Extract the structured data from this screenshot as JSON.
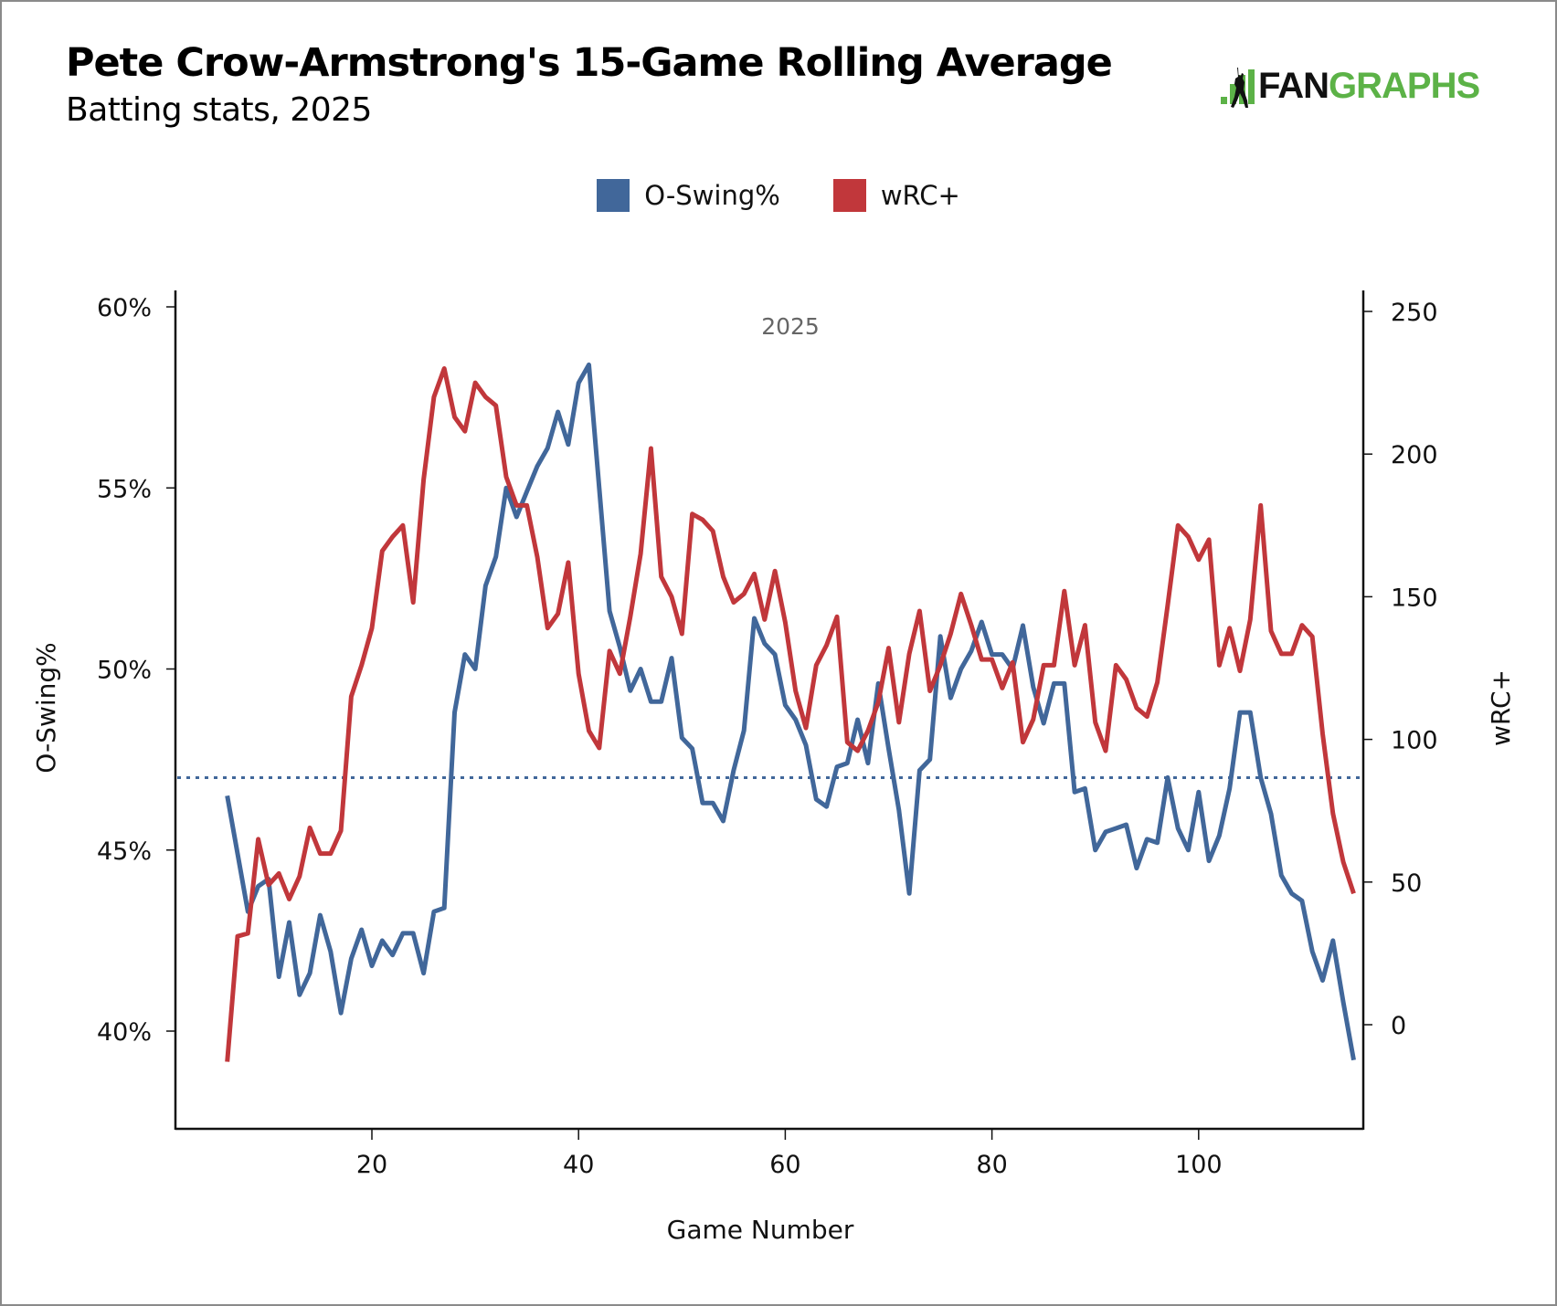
{
  "header": {
    "title": "Pete Crow-Armstrong's 15-Game Rolling Average",
    "subtitle": "Batting stats, 2025",
    "logo_text_dark": "FAN",
    "logo_text_green": "GRAPHS",
    "logo_icon": "batter-bar-chart-icon"
  },
  "colors": {
    "o_swing": "#41679a",
    "wrc_plus": "#c1373b",
    "logo_green": "#5cb247"
  },
  "chart_data": {
    "type": "line",
    "title": "Pete Crow-Armstrong's 15-Game Rolling Average",
    "subtitle": "Batting stats, 2025",
    "annotation": "2025",
    "xlabel": "Game Number",
    "ylabel_left": "O-Swing%",
    "ylabel_right": "wRC+",
    "x_ticks": [
      20,
      40,
      60,
      80,
      100
    ],
    "y_left_ticks": [
      40,
      45,
      50,
      55,
      60
    ],
    "y_left_tick_labels": [
      "40%",
      "45%",
      "50%",
      "55%",
      "60%"
    ],
    "y_right_ticks": [
      0,
      50,
      100,
      150,
      200,
      250
    ],
    "y_right_tick_labels": [
      "0",
      "50",
      "100",
      "150",
      "200",
      "250"
    ],
    "xlim": [
      1,
      117
    ],
    "ylim_left": [
      37.5,
      60.5
    ],
    "ylim_right": [
      -20,
      257
    ],
    "legend_position": "top-center",
    "grid": false,
    "reference_line": {
      "series": "O-Swing%",
      "value": 47.0,
      "style": "dotted"
    },
    "x": [
      6,
      7,
      8,
      9,
      10,
      11,
      12,
      13,
      14,
      15,
      16,
      17,
      18,
      19,
      20,
      21,
      22,
      23,
      24,
      25,
      26,
      27,
      28,
      29,
      30,
      31,
      32,
      33,
      34,
      35,
      36,
      37,
      38,
      39,
      40,
      41,
      42,
      43,
      44,
      45,
      46,
      47,
      48,
      49,
      50,
      51,
      52,
      53,
      54,
      55,
      56,
      57,
      58,
      59,
      60,
      61,
      62,
      63,
      64,
      65,
      66,
      67,
      68,
      69,
      70,
      71,
      72,
      73,
      74,
      75,
      76,
      77,
      78,
      79,
      80,
      81,
      82,
      83,
      84,
      85,
      86,
      87,
      88,
      89,
      90,
      91,
      92,
      93,
      94,
      95,
      96,
      97,
      98,
      99,
      100,
      101,
      102,
      103,
      104,
      105,
      106,
      107,
      108,
      109,
      110,
      111,
      112,
      113,
      114,
      115
    ],
    "series": [
      {
        "name": "O-Swing%",
        "axis": "left",
        "unit": "%",
        "values": [
          46.5,
          44.9,
          43.3,
          44.0,
          44.2,
          41.5,
          43.0,
          41.0,
          41.6,
          43.2,
          42.2,
          40.5,
          42.0,
          42.8,
          41.8,
          42.5,
          42.1,
          42.7,
          42.7,
          41.6,
          43.3,
          43.4,
          48.8,
          50.4,
          50.0,
          52.3,
          53.1,
          55.0,
          54.2,
          54.9,
          55.6,
          56.1,
          57.1,
          56.2,
          57.9,
          58.4,
          55.0,
          51.6,
          50.6,
          49.4,
          50.0,
          49.1,
          49.1,
          50.3,
          48.1,
          47.8,
          46.3,
          46.3,
          45.8,
          47.2,
          48.3,
          51.4,
          50.7,
          50.4,
          49.0,
          48.6,
          47.9,
          46.4,
          46.2,
          47.3,
          47.4,
          48.6,
          47.4,
          49.6,
          47.8,
          46.1,
          43.8,
          47.2,
          47.5,
          50.9,
          49.2,
          50.0,
          50.5,
          51.3,
          50.4,
          50.4,
          50.0,
          51.2,
          49.5,
          48.5,
          49.6,
          49.6,
          46.6,
          46.7,
          45.0,
          45.5,
          45.6,
          45.7,
          44.5,
          45.3,
          45.2,
          47.0,
          45.6,
          45.0,
          46.6,
          44.7,
          45.4,
          46.7,
          48.8,
          48.8,
          47.0,
          46.0,
          44.3,
          43.8,
          43.6,
          42.2,
          41.4,
          42.5,
          40.8,
          39.2
        ]
      },
      {
        "name": "wRC+",
        "axis": "right",
        "unit": "",
        "values": [
          -13,
          31,
          32,
          65,
          49,
          53,
          44,
          52,
          69,
          60,
          60,
          68,
          115,
          126,
          139,
          166,
          171,
          175,
          148,
          191,
          220,
          230,
          213,
          208,
          225,
          220,
          217,
          192,
          182,
          182,
          164,
          139,
          144,
          162,
          123,
          103,
          97,
          131,
          123,
          143,
          165,
          202,
          157,
          150,
          137,
          179,
          177,
          173,
          157,
          148,
          151,
          158,
          142,
          159,
          141,
          117,
          104,
          126,
          133,
          143,
          99,
          96,
          103,
          113,
          132,
          106,
          130,
          145,
          117,
          126,
          137,
          151,
          140,
          128,
          128,
          118,
          127,
          99,
          107,
          126,
          126,
          152,
          126,
          140,
          106,
          96,
          126,
          121,
          111,
          108,
          120,
          147,
          175,
          171,
          163,
          170,
          126,
          139,
          124,
          142,
          182,
          138,
          130,
          130,
          140,
          136,
          102,
          74,
          57,
          46
        ]
      }
    ]
  }
}
